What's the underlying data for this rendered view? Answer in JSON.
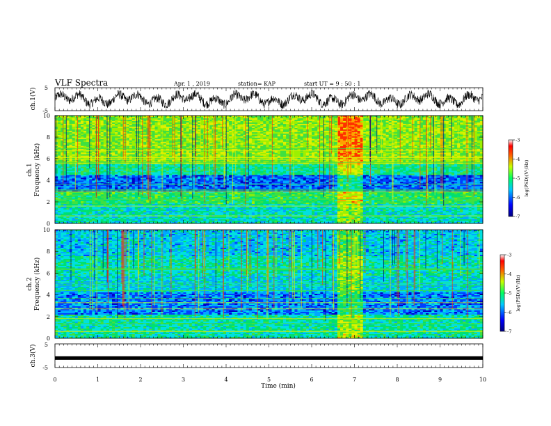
{
  "header": {
    "title": "VLF Spectra",
    "date": "Apr. 1 , 2019",
    "station": "station= KAP",
    "start": "start UT = 9 : 50 : 1"
  },
  "chart_data": [
    {
      "type": "line",
      "panel": "ch1-waveform",
      "ylabel": "ch.1(V)",
      "ylim": [
        -5,
        5
      ],
      "yticks": [
        "5",
        "-5"
      ],
      "xlim": [
        0,
        10
      ]
    },
    {
      "type": "heatmap",
      "panel": "ch1-spectrogram",
      "ylabel": "ch.1",
      "ylabel2": "Frequency (kHz)",
      "ylim": [
        0,
        10
      ],
      "yticks": [
        "0",
        "2",
        "4",
        "6",
        "8",
        "10"
      ],
      "xlim": [
        0,
        10
      ],
      "disturbance_x": [
        6.6,
        7.15
      ],
      "colorbar": {
        "label": "log(PSD)(V²/Hz)",
        "range": [
          -7,
          -3
        ],
        "ticks": [
          "-3",
          "-4",
          "-5",
          "-6",
          "-7"
        ]
      }
    },
    {
      "type": "heatmap",
      "panel": "ch2-spectrogram",
      "ylabel": "ch.2",
      "ylabel2": "Frequency (kHz)",
      "ylim": [
        0,
        10
      ],
      "yticks": [
        "0",
        "2",
        "4",
        "6",
        "8",
        "10"
      ],
      "xlim": [
        0,
        10
      ],
      "disturbance_x": [
        6.6,
        7.15
      ],
      "colorbar": {
        "label": "log(PSD)(V²/Hz)",
        "range": [
          -7,
          -3
        ],
        "ticks": [
          "-3",
          "-4",
          "-5",
          "-6",
          "-7"
        ]
      }
    },
    {
      "type": "line",
      "panel": "ch3-waveform",
      "ylabel": "ch.3(V)",
      "ylim": [
        -5,
        5
      ],
      "yticks": [
        "5",
        "-5"
      ],
      "xlim": [
        0,
        10
      ],
      "level": -1
    }
  ],
  "x_axis": {
    "label": "Time (min)",
    "ticks": [
      "0",
      "1",
      "2",
      "3",
      "4",
      "5",
      "6",
      "7",
      "8",
      "9",
      "10"
    ]
  },
  "colors": {
    "spectrum_low": "#00008b",
    "spectrum_mid": "#3bd06c",
    "spectrum_high": "#ff2000"
  }
}
